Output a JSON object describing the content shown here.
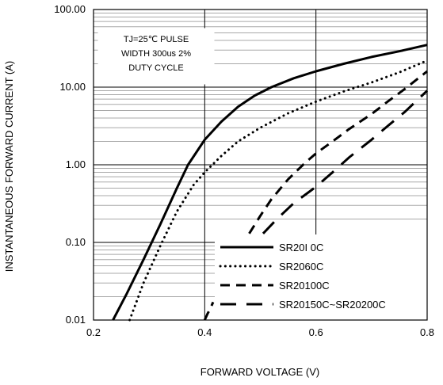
{
  "chart_data": {
    "type": "line",
    "title": "",
    "xlabel": "FORWARD VOLTAGE (V)",
    "ylabel": "INSTANTANEOUS FORWARD CURRENT (A)",
    "xlim": [
      0.2,
      0.8
    ],
    "ylim": [
      0.01,
      100
    ],
    "yscale": "log",
    "x_ticks": [
      "0.2",
      "0.4",
      "0.6",
      "0.8"
    ],
    "y_ticks": [
      "0.01",
      "0.10",
      "1.00",
      "10.00",
      "100.00"
    ],
    "grid": true,
    "legend_position": "bottom-right",
    "annotation": [
      "TJ=25℃ PULSE",
      "WIDTH 300us 2%",
      "DUTY CYCLE"
    ],
    "series": [
      {
        "name": "SR20I 0C",
        "style": "solid",
        "x": [
          0.235,
          0.26,
          0.29,
          0.32,
          0.35,
          0.37,
          0.4,
          0.43,
          0.46,
          0.49,
          0.52,
          0.56,
          0.6,
          0.65,
          0.7,
          0.75,
          0.8
        ],
        "y": [
          0.01,
          0.022,
          0.06,
          0.17,
          0.5,
          1.0,
          2.1,
          3.6,
          5.6,
          7.8,
          10.0,
          13.0,
          16.0,
          20.0,
          24.5,
          29.0,
          35.0
        ]
      },
      {
        "name": "SR2060C",
        "style": "dotted",
        "x": [
          0.265,
          0.29,
          0.32,
          0.35,
          0.38,
          0.4,
          0.43,
          0.46,
          0.5,
          0.55,
          0.6,
          0.65,
          0.7,
          0.75,
          0.8
        ],
        "y": [
          0.01,
          0.03,
          0.09,
          0.25,
          0.55,
          0.8,
          1.3,
          2.0,
          3.0,
          4.6,
          6.5,
          8.8,
          11.5,
          15.5,
          22.0
        ]
      },
      {
        "name": "SR20100C",
        "style": "dashed",
        "x": [
          0.48,
          0.5,
          0.52,
          0.55,
          0.58,
          0.6,
          0.63,
          0.66,
          0.7,
          0.73,
          0.76,
          0.8
        ],
        "y": [
          0.13,
          0.22,
          0.36,
          0.65,
          1.05,
          1.4,
          2.0,
          2.9,
          4.5,
          6.6,
          9.5,
          16.0
        ]
      },
      {
        "name": "SR20150C~SR20200C",
        "style": "longdash",
        "x": [
          0.505,
          0.53,
          0.56,
          0.6,
          0.63,
          0.66,
          0.7,
          0.73,
          0.76,
          0.8
        ],
        "y": [
          0.13,
          0.2,
          0.32,
          0.52,
          0.8,
          1.25,
          2.1,
          3.2,
          4.8,
          9.0
        ]
      },
      {
        "name": "",
        "style": "dashed",
        "x": [
          0.4,
          0.405,
          0.41,
          0.415
        ],
        "y": [
          0.01,
          0.012,
          0.014,
          0.017
        ]
      }
    ]
  }
}
